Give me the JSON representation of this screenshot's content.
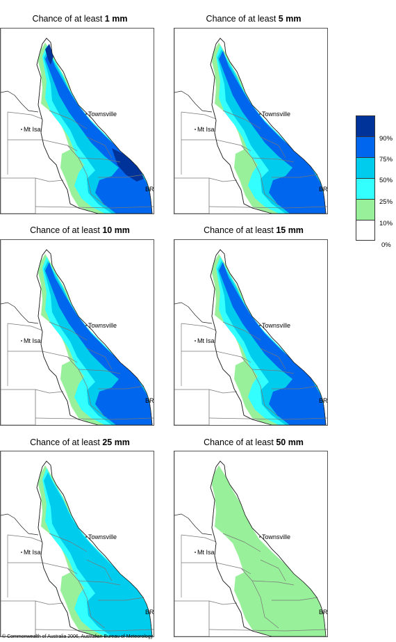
{
  "colors": {
    "bin_0_10": "#ffffff",
    "bin_10_25": "#99f09a",
    "bin_25_50": "#33ffff",
    "bin_50_75": "#00ccee",
    "bin_75_90": "#0066ee",
    "bin_90_100": "#003399",
    "border": "#777777",
    "coast": "#222222"
  },
  "places": {
    "townsville": "Townsville",
    "mt_isa": "Mt Isa",
    "brisbane": "BRIS"
  },
  "panels": [
    {
      "title_prefix": "Chance of at least ",
      "threshold": "1 mm",
      "max_bin": 5
    },
    {
      "title_prefix": "Chance of at least ",
      "threshold": "5 mm",
      "max_bin": 4
    },
    {
      "title_prefix": "Chance of at least ",
      "threshold": "10 mm",
      "max_bin": 4
    },
    {
      "title_prefix": "Chance of at least ",
      "threshold": "15 mm",
      "max_bin": 4
    },
    {
      "title_prefix": "Chance of at least ",
      "threshold": "25 mm",
      "max_bin": 3
    },
    {
      "title_prefix": "Chance of at least ",
      "threshold": "50 mm",
      "max_bin": 1
    }
  ],
  "legend": {
    "labels": [
      "90%",
      "75%",
      "50%",
      "25%",
      "10%",
      "0%"
    ]
  },
  "copyright": "© Commonwealth of Australia 2006, Australian Bureau of Meteorology"
}
